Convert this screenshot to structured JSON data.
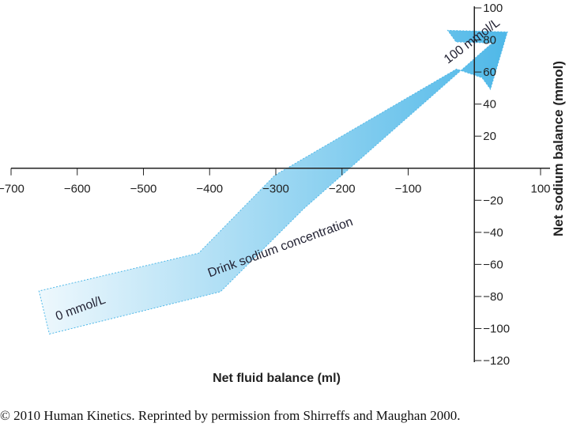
{
  "chart_data": {
    "type": "line",
    "xlabel": "Net fluid balance (ml)",
    "ylabel": "Net sodium balance (mmol)",
    "xlim": [
      -700,
      100
    ],
    "ylim": [
      -120,
      100
    ],
    "x_ticks": [
      -700,
      -600,
      -500,
      -400,
      -300,
      -200,
      -100,
      100
    ],
    "y_ticks": [
      100,
      80,
      60,
      40,
      20,
      -20,
      -40,
      -60,
      -80,
      -100,
      -120
    ],
    "series": [
      {
        "x": [
          -650,
          -400,
          -280,
          0,
          50
        ],
        "y": [
          -90,
          -65,
          -15,
          70,
          85
        ]
      }
    ],
    "annotations": [
      {
        "text": "0 mmol/L",
        "x": -630,
        "y": -95
      },
      {
        "text": "Drink sodium concentration",
        "x": -400,
        "y": -68
      },
      {
        "text": "100 mmol/L",
        "x": -40,
        "y": 65
      }
    ],
    "arrow_color": "#4fb8e8"
  },
  "footer": {
    "copyright": "© 2010 Human Kinetics. Reprinted by permission from Shirreffs and Maughan 2000."
  }
}
